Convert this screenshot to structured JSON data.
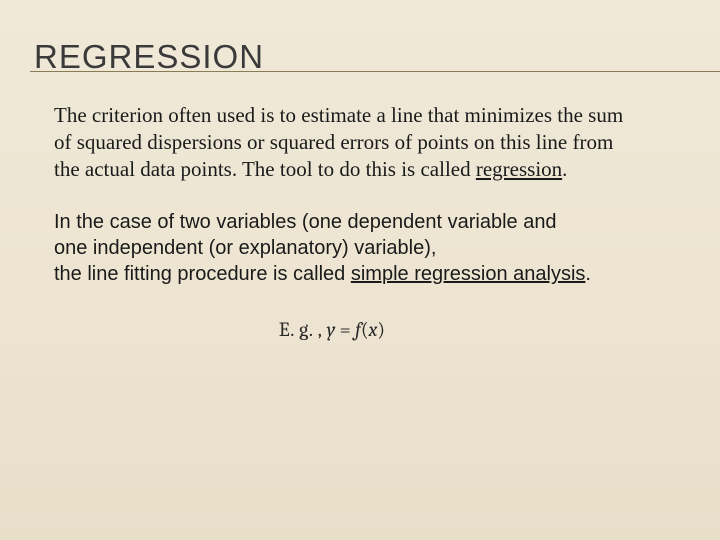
{
  "background": {
    "gradient_top": "#f0e9d8",
    "gradient_mid": "#ede5d2",
    "gradient_bottom": "#e8dfc9"
  },
  "title": {
    "text": "REGRESSION",
    "fontsize": 33,
    "color": "#3a3a3a",
    "underline_color": "#8a7a56"
  },
  "paragraph1": {
    "text_before": "The criterion often used is to estimate a line that minimizes the sum of squared dispersions or squared errors of points on this line from the actual data points. The tool to do this is called ",
    "underlined": "regression",
    "text_after": ".",
    "font": "serif",
    "fontsize": 21,
    "line_height": 1.28
  },
  "paragraph2": {
    "line1": "In the case of two variables (one dependent variable and one independent (or explanatory) variable),",
    "line2_before": "the line fitting procedure is called ",
    "underlined": "simple regression analysis",
    "line2_after": ".",
    "font": "sans-serif",
    "fontsize": 20,
    "line_height": 1.32
  },
  "equation": {
    "prefix": "E. g. , ",
    "lhs": "y",
    "eq": " = ",
    "rhs_f": "f",
    "rhs_open": "(",
    "rhs_x": "x",
    "rhs_close": ")",
    "fontsize": 20,
    "color": "#2a2a2a"
  }
}
